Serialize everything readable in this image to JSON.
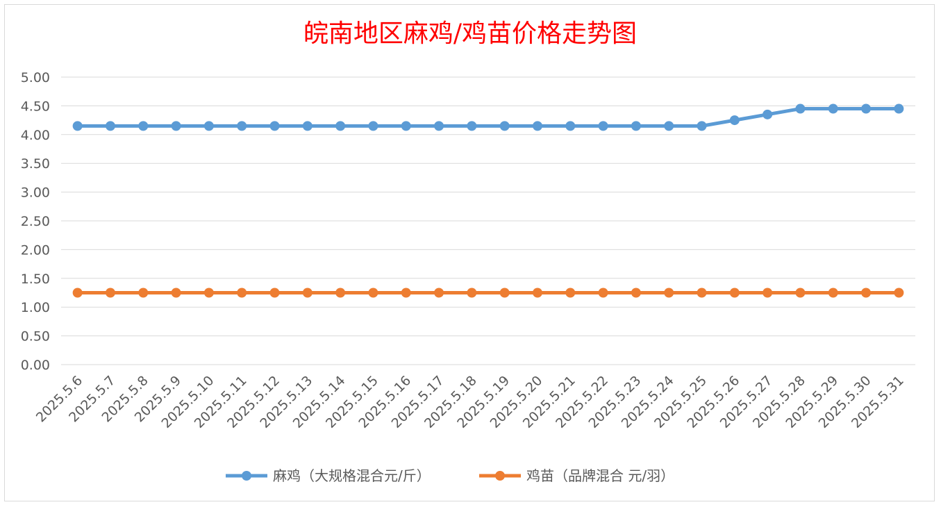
{
  "chart_data": {
    "type": "line",
    "title": "皖南地区麻鸡/鸡苗价格走势图",
    "xlabel": "",
    "ylabel": "",
    "ylim": [
      0,
      5
    ],
    "y_ticks": [
      "0.00",
      "0.50",
      "1.00",
      "1.50",
      "2.00",
      "2.50",
      "3.00",
      "3.50",
      "4.00",
      "4.50",
      "5.00"
    ],
    "grid": true,
    "legend_position": "bottom",
    "categories": [
      "2025.5.6",
      "2025.5.7",
      "2025.5.8",
      "2025.5.9",
      "2025.5.10",
      "2025.5.11",
      "2025.5.12",
      "2025.5.13",
      "2025.5.14",
      "2025.5.15",
      "2025.5.16",
      "2025.5.17",
      "2025.5.18",
      "2025.5.19",
      "2025.5.20",
      "2025.5.21",
      "2025.5.22",
      "2025.5.23",
      "2025.5.24",
      "2025.5.25",
      "2025.5.26",
      "2025.5.27",
      "2025.5.28",
      "2025.5.29",
      "2025.5.30",
      "2025.5.31"
    ],
    "series": [
      {
        "name": "麻鸡（大规格混合元/斤）",
        "color": "#5b9bd5",
        "values": [
          4.15,
          4.15,
          4.15,
          4.15,
          4.15,
          4.15,
          4.15,
          4.15,
          4.15,
          4.15,
          4.15,
          4.15,
          4.15,
          4.15,
          4.15,
          4.15,
          4.15,
          4.15,
          4.15,
          4.15,
          4.25,
          4.35,
          4.45,
          4.45,
          4.45,
          4.45
        ]
      },
      {
        "name": "鸡苗（品牌混合 元/羽）",
        "color": "#ed7d31",
        "values": [
          1.25,
          1.25,
          1.25,
          1.25,
          1.25,
          1.25,
          1.25,
          1.25,
          1.25,
          1.25,
          1.25,
          1.25,
          1.25,
          1.25,
          1.25,
          1.25,
          1.25,
          1.25,
          1.25,
          1.25,
          1.25,
          1.25,
          1.25,
          1.25,
          1.25,
          1.25
        ]
      }
    ]
  }
}
